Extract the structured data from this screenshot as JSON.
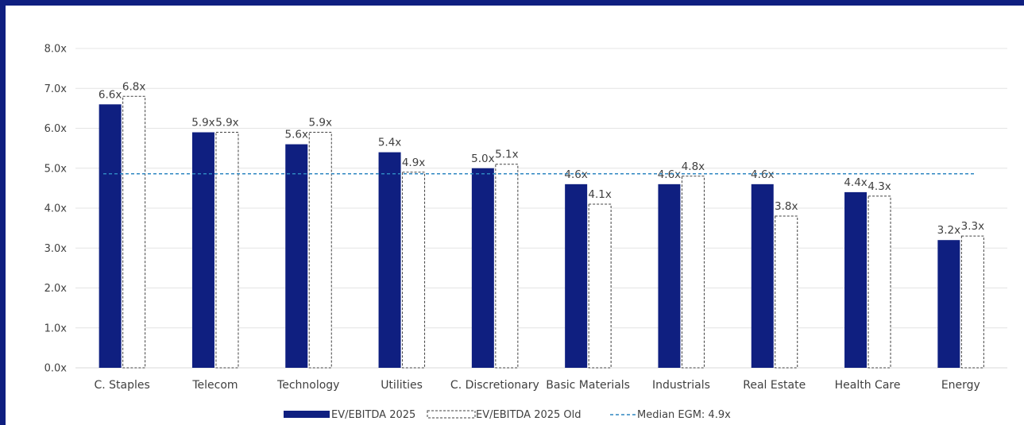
{
  "colors": {
    "primary": "#0f1f80",
    "old_stroke": "#404040",
    "median": "#2e86c1",
    "grid": "#e4e4e4",
    "frame": "#0f1f80"
  },
  "chart_data": {
    "type": "bar",
    "categories": [
      "C. Staples",
      "Telecom",
      "Technology",
      "Utilities",
      "C. Discretionary",
      "Basic Materials",
      "Industrials",
      "Real Estate",
      "Health Care",
      "Energy"
    ],
    "series": [
      {
        "name": "EV/EBITDA 2025",
        "style": "solid",
        "values": [
          6.6,
          5.9,
          5.6,
          5.4,
          5.0,
          4.6,
          4.6,
          4.6,
          4.4,
          3.2
        ],
        "labels": [
          "6.6x",
          "5.9x",
          "5.6x",
          "5.4x",
          "5.0x",
          "4.6x",
          "4.6x",
          "4.6x",
          "4.4x",
          "3.2x"
        ]
      },
      {
        "name": "EV/EBITDA 2025 Old",
        "style": "dashed-outline",
        "values": [
          6.8,
          5.9,
          5.9,
          4.9,
          5.1,
          4.1,
          4.8,
          3.8,
          4.3,
          3.3
        ],
        "labels": [
          "6.8x",
          "5.9x",
          "5.9x",
          "4.9x",
          "5.1x",
          "4.1x",
          "4.8x",
          "3.8x",
          "4.3x",
          "3.3x"
        ]
      }
    ],
    "reference_line": {
      "name": "Median EGM: 4.9x",
      "value": 4.86,
      "style": "dashed"
    },
    "ylim": [
      0,
      8
    ],
    "yticks": [
      "0.0x",
      "1.0x",
      "2.0x",
      "3.0x",
      "4.0x",
      "5.0x",
      "6.0x",
      "7.0x",
      "8.0x"
    ],
    "grid": true,
    "legend": "bottom-center"
  }
}
